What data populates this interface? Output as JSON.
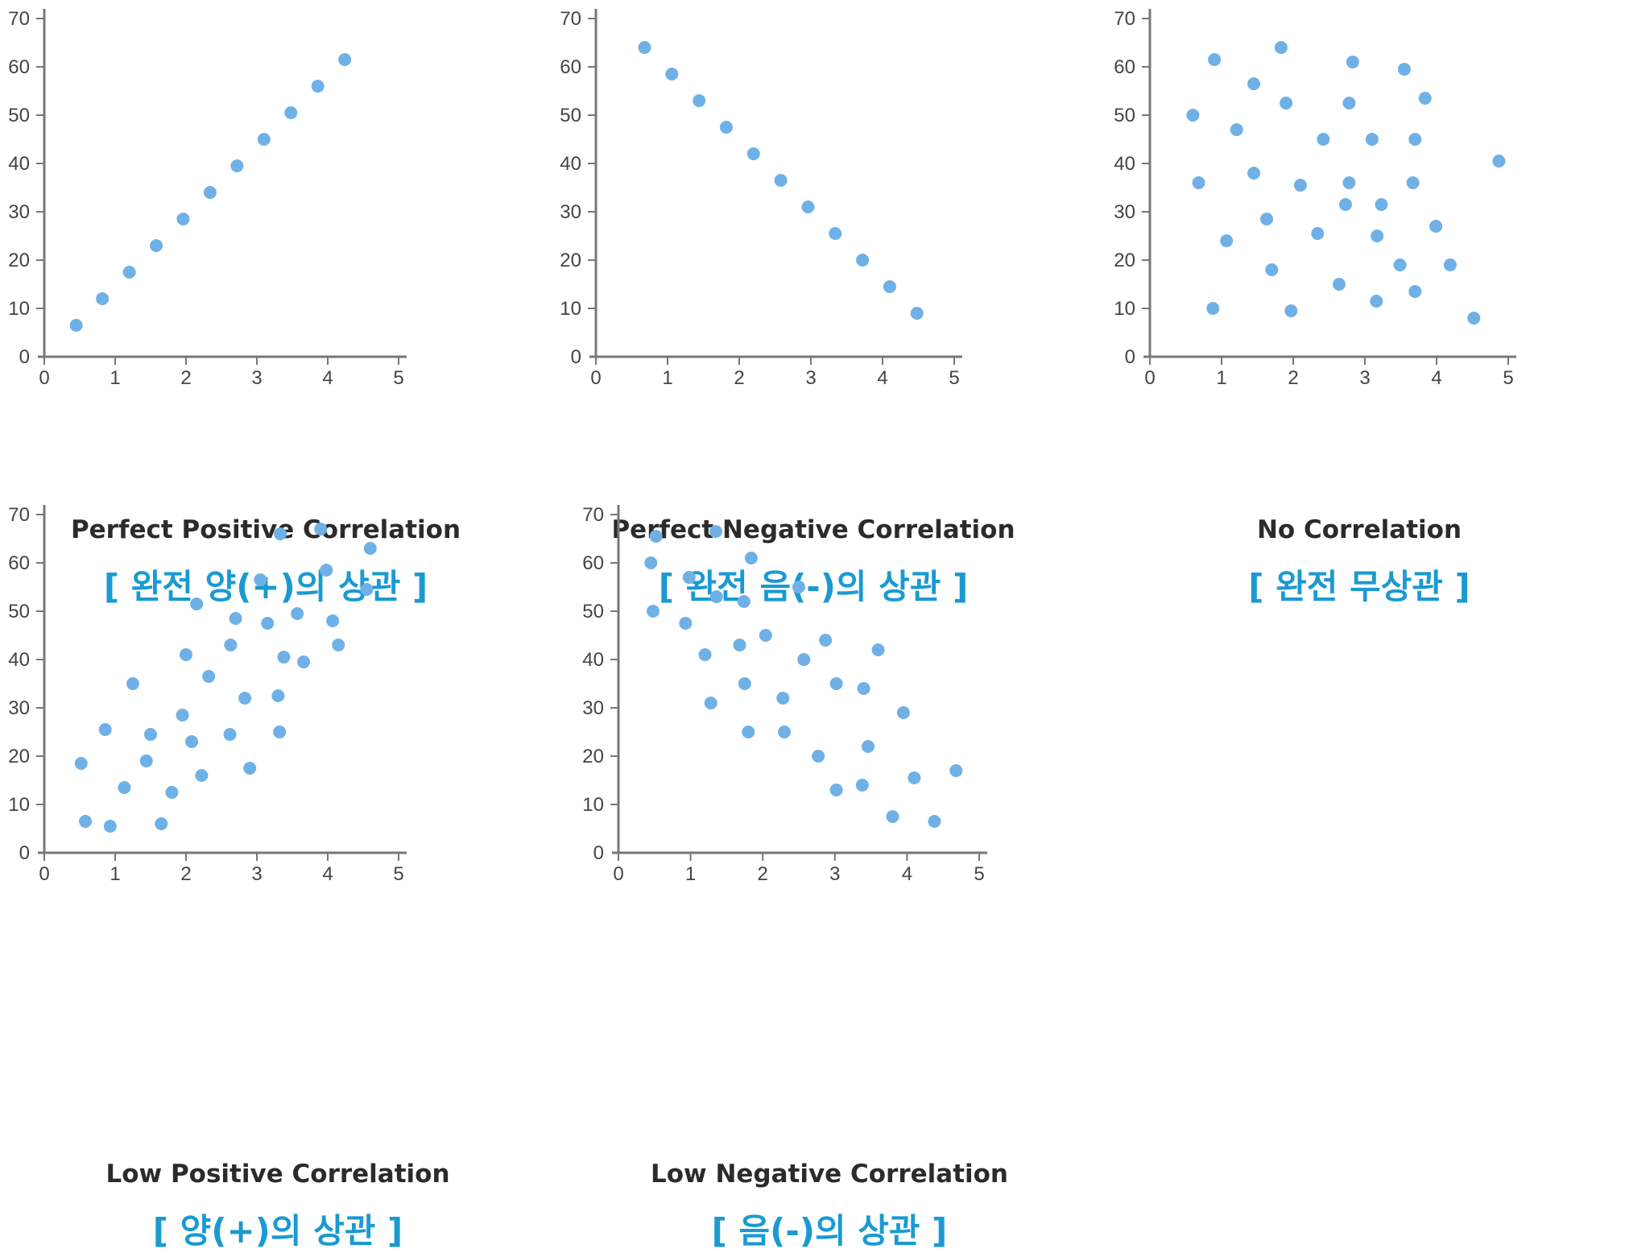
{
  "chart_data": [
    {
      "type": "scatter",
      "title": "Perfect Positive Correlation",
      "subtitle": "[ 완전 양(+)의 상관 ]",
      "xlim": [
        0,
        5
      ],
      "ylim": [
        0,
        70
      ],
      "x_ticks": [
        "0",
        "1",
        "2",
        "3",
        "4",
        "5"
      ],
      "y_ticks": [
        "0",
        "10",
        "20",
        "30",
        "40",
        "50",
        "60",
        "70"
      ],
      "points": [
        [
          0.45,
          6.5
        ],
        [
          0.82,
          12
        ],
        [
          1.2,
          17.5
        ],
        [
          1.58,
          23
        ],
        [
          1.96,
          28.5
        ],
        [
          2.34,
          34
        ],
        [
          2.72,
          39.5
        ],
        [
          3.1,
          45
        ],
        [
          3.48,
          50.5
        ],
        [
          3.86,
          56
        ],
        [
          4.24,
          61.5
        ]
      ]
    },
    {
      "type": "scatter",
      "title": "Perfect Negative Correlation",
      "subtitle": "[ 완전 음(-)의 상관 ]",
      "xlim": [
        0,
        5
      ],
      "ylim": [
        0,
        70
      ],
      "x_ticks": [
        "0",
        "1",
        "2",
        "3",
        "4",
        "5"
      ],
      "y_ticks": [
        "0",
        "10",
        "20",
        "30",
        "40",
        "50",
        "60",
        "70"
      ],
      "points": [
        [
          0.68,
          64
        ],
        [
          1.06,
          58.5
        ],
        [
          1.44,
          53
        ],
        [
          1.82,
          47.5
        ],
        [
          2.2,
          42
        ],
        [
          2.58,
          36.5
        ],
        [
          2.96,
          31
        ],
        [
          3.34,
          25.5
        ],
        [
          3.72,
          20
        ],
        [
          4.1,
          14.5
        ],
        [
          4.48,
          9
        ]
      ]
    },
    {
      "type": "scatter",
      "title": "No Correlation",
      "subtitle": "[ 완전 무상관 ]",
      "xlim": [
        0,
        5
      ],
      "ylim": [
        0,
        70
      ],
      "x_ticks": [
        "0",
        "1",
        "2",
        "3",
        "4",
        "5"
      ],
      "y_ticks": [
        "0",
        "10",
        "20",
        "30",
        "40",
        "50",
        "60",
        "70"
      ],
      "points": [
        [
          0.6,
          50
        ],
        [
          0.68,
          36
        ],
        [
          0.9,
          61.5
        ],
        [
          0.88,
          10
        ],
        [
          1.07,
          24
        ],
        [
          1.21,
          47
        ],
        [
          1.45,
          56.5
        ],
        [
          1.45,
          38
        ],
        [
          1.63,
          28.5
        ],
        [
          1.7,
          18
        ],
        [
          1.83,
          64
        ],
        [
          1.9,
          52.5
        ],
        [
          1.97,
          9.5
        ],
        [
          2.1,
          35.5
        ],
        [
          2.34,
          25.5
        ],
        [
          2.42,
          45
        ],
        [
          2.64,
          15
        ],
        [
          2.73,
          31.5
        ],
        [
          2.78,
          36
        ],
        [
          2.78,
          52.5
        ],
        [
          2.83,
          61
        ],
        [
          3.1,
          45
        ],
        [
          3.16,
          11.5
        ],
        [
          3.17,
          25
        ],
        [
          3.23,
          31.5
        ],
        [
          3.49,
          19
        ],
        [
          3.55,
          59.5
        ],
        [
          3.67,
          36
        ],
        [
          3.7,
          13.5
        ],
        [
          3.7,
          45
        ],
        [
          3.84,
          53.5
        ],
        [
          3.99,
          27
        ],
        [
          4.19,
          19
        ],
        [
          4.52,
          8
        ],
        [
          4.87,
          40.5
        ]
      ]
    },
    {
      "type": "scatter",
      "title": "Low Positive Correlation",
      "subtitle": "[ 양(+)의 상관 ]",
      "xlim": [
        0,
        5
      ],
      "ylim": [
        0,
        70
      ],
      "x_ticks": [
        "0",
        "1",
        "2",
        "3",
        "4",
        "5"
      ],
      "y_ticks": [
        "0",
        "10",
        "20",
        "30",
        "40",
        "50",
        "60",
        "70"
      ],
      "points": [
        [
          0.52,
          18.5
        ],
        [
          0.58,
          6.5
        ],
        [
          0.86,
          25.5
        ],
        [
          0.93,
          5.5
        ],
        [
          1.13,
          13.5
        ],
        [
          1.25,
          35
        ],
        [
          1.44,
          19
        ],
        [
          1.5,
          24.5
        ],
        [
          1.65,
          6
        ],
        [
          1.8,
          12.5
        ],
        [
          1.95,
          28.5
        ],
        [
          2.0,
          41
        ],
        [
          2.08,
          23
        ],
        [
          2.15,
          51.5
        ],
        [
          2.22,
          16
        ],
        [
          2.32,
          36.5
        ],
        [
          2.62,
          24.5
        ],
        [
          2.63,
          43
        ],
        [
          2.7,
          48.5
        ],
        [
          2.83,
          32
        ],
        [
          2.9,
          17.5
        ],
        [
          3.05,
          56.5
        ],
        [
          3.15,
          47.5
        ],
        [
          3.3,
          32.5
        ],
        [
          3.32,
          25
        ],
        [
          3.33,
          66
        ],
        [
          3.38,
          40.5
        ],
        [
          3.57,
          49.5
        ],
        [
          3.66,
          39.5
        ],
        [
          3.9,
          67
        ],
        [
          3.98,
          58.5
        ],
        [
          4.07,
          48
        ],
        [
          4.15,
          43
        ],
        [
          4.55,
          54.5
        ],
        [
          4.6,
          63
        ]
      ]
    },
    {
      "type": "scatter",
      "title": "Low Negative Correlation",
      "subtitle": "[ 음(-)의 상관 ]",
      "xlim": [
        0,
        5
      ],
      "ylim": [
        0,
        70
      ],
      "x_ticks": [
        "0",
        "1",
        "2",
        "3",
        "4",
        "5"
      ],
      "y_ticks": [
        "0",
        "10",
        "20",
        "30",
        "40",
        "50",
        "60",
        "70"
      ],
      "points": [
        [
          0.45,
          60
        ],
        [
          0.48,
          50
        ],
        [
          0.52,
          65.5
        ],
        [
          0.93,
          47.5
        ],
        [
          0.98,
          57
        ],
        [
          1.2,
          41
        ],
        [
          1.28,
          31
        ],
        [
          1.35,
          66.5
        ],
        [
          1.36,
          53
        ],
        [
          1.68,
          43
        ],
        [
          1.74,
          52
        ],
        [
          1.75,
          35
        ],
        [
          1.8,
          25
        ],
        [
          1.84,
          61
        ],
        [
          2.04,
          45
        ],
        [
          2.28,
          32
        ],
        [
          2.3,
          25
        ],
        [
          2.5,
          55
        ],
        [
          2.57,
          40
        ],
        [
          2.77,
          20
        ],
        [
          2.87,
          44
        ],
        [
          3.02,
          35
        ],
        [
          3.02,
          13
        ],
        [
          3.38,
          14
        ],
        [
          3.4,
          34
        ],
        [
          3.46,
          22
        ],
        [
          3.6,
          42
        ],
        [
          3.8,
          7.5
        ],
        [
          3.95,
          29
        ],
        [
          4.1,
          15.5
        ],
        [
          4.38,
          6.5
        ],
        [
          4.68,
          17
        ]
      ]
    }
  ]
}
